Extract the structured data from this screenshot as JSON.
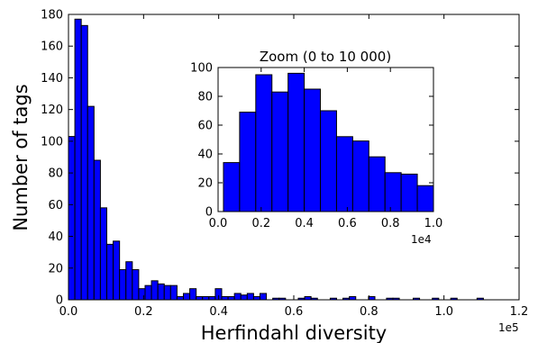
{
  "chart_data": [
    {
      "type": "bar",
      "role": "main-histogram",
      "title": "",
      "xlabel": "Herfindahl diversity",
      "ylabel": "Number of tags",
      "x_tick_labels": [
        "0.0",
        "0.2",
        "0.4",
        "0.6",
        "0.8",
        "1.0",
        "1.2"
      ],
      "x_tick_values": [
        0.0,
        0.2,
        0.4,
        0.6,
        0.8,
        1.0,
        1.2
      ],
      "x_exponent_label": "1e5",
      "y_tick_labels": [
        "0",
        "20",
        "40",
        "60",
        "80",
        "100",
        "120",
        "140",
        "160",
        "180"
      ],
      "y_tick_values": [
        0,
        20,
        40,
        60,
        80,
        100,
        120,
        140,
        160,
        180
      ],
      "xlim": [
        0,
        120000
      ],
      "ylim": [
        0,
        180
      ],
      "bin_width": 1700,
      "bin_starts": [
        0,
        1700,
        3400,
        5100,
        6800,
        8500,
        10200,
        11900,
        13600,
        15300,
        17000,
        18700,
        20400,
        22100,
        23800,
        25500,
        27200,
        28900,
        30600,
        32300,
        34000,
        35700,
        37400,
        39100,
        40800,
        42500,
        44200,
        45900,
        47600,
        49300,
        51000,
        54400,
        56100,
        61200,
        62900,
        64600,
        69700,
        73100,
        74800,
        79900,
        84700,
        86400,
        91800,
        96900,
        101800,
        108800
      ],
      "values": [
        103,
        177,
        173,
        122,
        88,
        58,
        35,
        37,
        19,
        24,
        19,
        7,
        9,
        12,
        10,
        9,
        9,
        2,
        4,
        7,
        2,
        2,
        2,
        7,
        2,
        2,
        4,
        3,
        4,
        2,
        4,
        1,
        1,
        1,
        2,
        1,
        1,
        1,
        2,
        2,
        1,
        1,
        1,
        1,
        1,
        1
      ],
      "bar_color": "#0000ff",
      "edge_color": "#000000",
      "grid": false
    },
    {
      "type": "bar",
      "role": "inset-zoom-histogram",
      "title": "Zoom (0 to 10 000)",
      "xlabel": "",
      "ylabel": "",
      "x_tick_labels": [
        "0.0",
        "0.2",
        "0.4",
        "0.6",
        "0.8",
        "1.0"
      ],
      "x_tick_values": [
        0.0,
        0.2,
        0.4,
        0.6,
        0.8,
        1.0
      ],
      "x_exponent_label": "1e4",
      "y_tick_labels": [
        "0",
        "20",
        "40",
        "60",
        "80",
        "100"
      ],
      "y_tick_values": [
        0,
        20,
        40,
        60,
        80,
        100
      ],
      "xlim": [
        0,
        10000
      ],
      "ylim": [
        0,
        100
      ],
      "bin_width": 750,
      "bin_starts": [
        250,
        1000,
        1750,
        2500,
        3250,
        4000,
        4750,
        5500,
        6250,
        7000,
        7750,
        8500,
        9250
      ],
      "values": [
        34,
        69,
        95,
        83,
        96,
        85,
        70,
        52,
        49,
        38,
        27,
        26,
        18
      ],
      "bar_color": "#0000ff",
      "edge_color": "#000000",
      "grid": false
    }
  ]
}
